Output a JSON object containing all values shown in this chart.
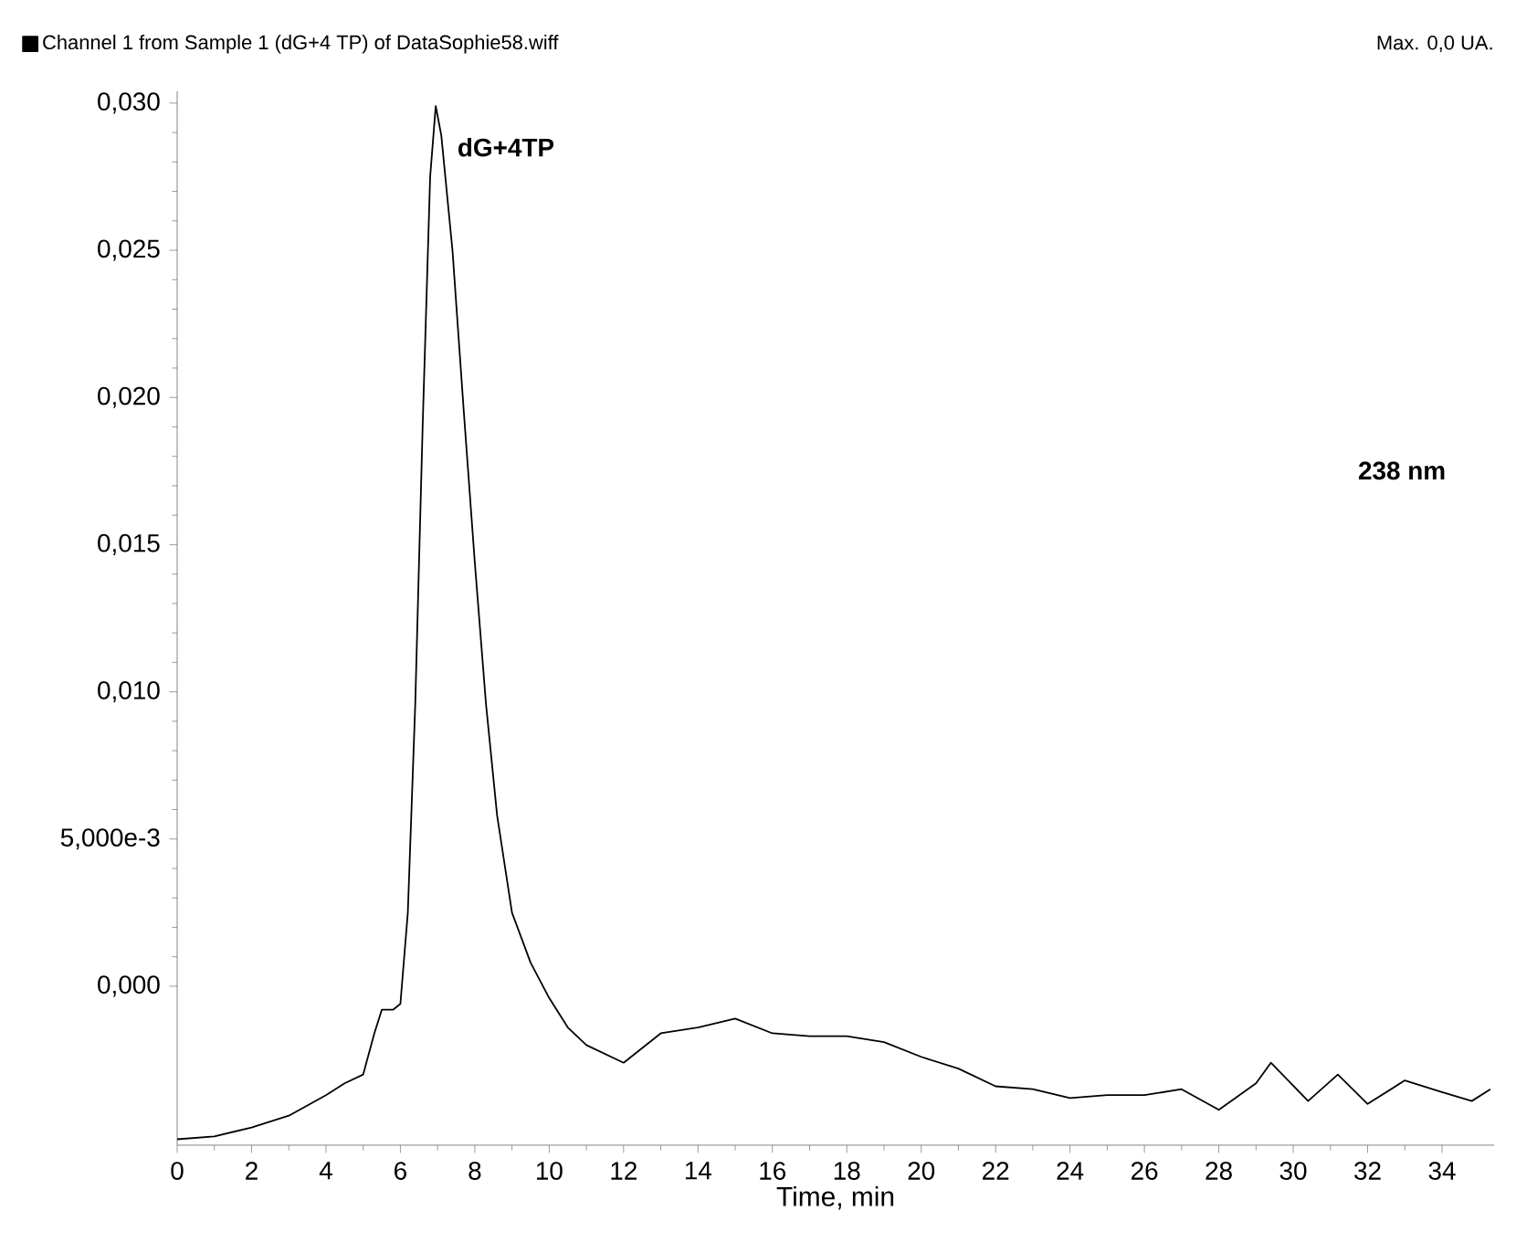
{
  "chart_data": {
    "type": "line",
    "xlabel": "Time, min",
    "legend": "top left",
    "annotations": [
      {
        "text": "dG+4TP",
        "x": 7,
        "y": 0.0285
      },
      "238 nm",
      "Max. 0,0 UA."
    ],
    "xlim": [
      0,
      35.4
    ],
    "ylim": [
      -0.0054,
      0.0304
    ],
    "xticks": [
      0,
      2,
      4,
      6,
      8,
      10,
      12,
      14,
      16,
      18,
      20,
      22,
      24,
      26,
      28,
      30,
      32,
      34
    ],
    "yticks": [
      {
        "value": 0,
        "label": "0,000"
      },
      {
        "value": 0.005,
        "label": "5,000e-3"
      },
      {
        "value": 0.01,
        "label": "0,010"
      },
      {
        "value": 0.015,
        "label": "0,015"
      },
      {
        "value": 0.02,
        "label": "0,020"
      },
      {
        "value": 0.025,
        "label": "0,025"
      },
      {
        "value": 0.03,
        "label": "0,030"
      }
    ],
    "series": [
      {
        "name": "Channel 1 from Sample 1 (dG+4 TP) of DataSophie58.wiff",
        "color": "#000000",
        "x": [
          0,
          1,
          2,
          3,
          4,
          4.5,
          5,
          5.3,
          5.5,
          5.8,
          6.0,
          6.2,
          6.4,
          6.6,
          6.8,
          6.95,
          7.1,
          7.4,
          7.7,
          8.0,
          8.3,
          8.6,
          9.0,
          9.5,
          10,
          10.5,
          11,
          12,
          13,
          14,
          15,
          16,
          17,
          18,
          19,
          20,
          21,
          22,
          23,
          24,
          25,
          26,
          27,
          28,
          29,
          29.4,
          30.4,
          31.2,
          32,
          33,
          34,
          34.8,
          35.3
        ],
        "values": [
          -0.0052,
          -0.0051,
          -0.0048,
          -0.0044,
          -0.0037,
          -0.0033,
          -0.003,
          -0.0016,
          -0.0008,
          -0.0008,
          -0.0006,
          0.0025,
          0.0096,
          0.0191,
          0.0275,
          0.0299,
          0.0289,
          0.025,
          0.0196,
          0.0144,
          0.0096,
          0.0058,
          0.0025,
          0.0008,
          -0.0004,
          -0.0014,
          -0.002,
          -0.0026,
          -0.0016,
          -0.0014,
          -0.0011,
          -0.0016,
          -0.0017,
          -0.0017,
          -0.0019,
          -0.0024,
          -0.0028,
          -0.0034,
          -0.0035,
          -0.0038,
          -0.0037,
          -0.0037,
          -0.0035,
          -0.0042,
          -0.0033,
          -0.0026,
          -0.0039,
          -0.003,
          -0.004,
          -0.0032,
          -0.0036,
          -0.0039,
          -0.0035
        ]
      }
    ]
  }
}
